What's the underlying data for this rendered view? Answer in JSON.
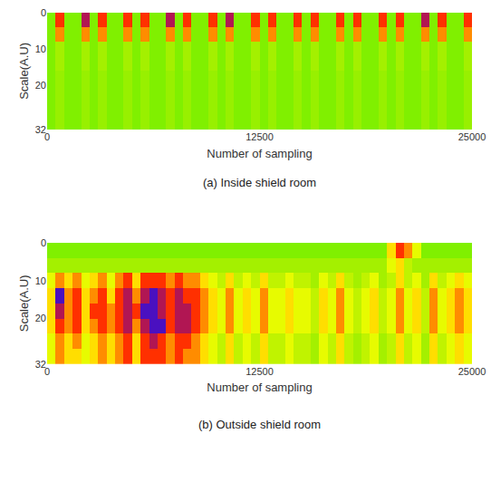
{
  "chart_data": [
    {
      "type": "heatmap",
      "title": "(a) Inside shield room",
      "x_label": "Number of sampling",
      "y_label": "Scale(A.U)",
      "xlim": [
        0,
        25000
      ],
      "ylim": [
        32,
        0
      ],
      "xticks": [
        0,
        12500,
        25000
      ],
      "yticks": [
        0,
        10,
        20,
        32
      ],
      "zlim": [
        0,
        4
      ],
      "cells": [
        [
          0,
          3,
          0,
          0,
          3.5,
          0,
          3,
          0,
          0,
          3,
          0,
          3,
          0,
          0,
          3.5,
          0,
          3,
          0,
          0,
          3,
          0,
          3.5,
          0,
          0,
          3,
          0,
          3,
          0,
          0,
          3,
          0,
          3,
          0,
          0,
          3,
          0,
          3,
          0,
          0,
          3,
          0,
          3,
          0,
          0,
          3.5,
          0,
          3,
          0,
          0,
          3
        ],
        [
          0,
          2.5,
          0,
          0,
          2.5,
          0,
          2.5,
          0,
          0,
          2.5,
          0,
          2.5,
          0,
          0,
          2.5,
          0,
          2.5,
          0,
          0,
          2.5,
          0,
          2.5,
          0,
          0,
          2.5,
          0,
          2.5,
          0,
          0,
          2.5,
          0,
          2.5,
          0,
          0,
          2.5,
          0,
          2.5,
          0,
          0,
          2.5,
          0,
          2.5,
          0,
          0,
          2.5,
          0,
          2.5,
          0,
          0,
          2.5
        ],
        [
          0,
          0.6,
          0,
          0,
          0.6,
          0,
          0.6,
          0,
          0,
          0.6,
          0,
          0.6,
          0,
          0,
          0.6,
          0,
          0.6,
          0,
          0,
          0.6,
          0,
          0.6,
          0,
          0,
          0.6,
          0,
          0.6,
          0,
          0,
          0.6,
          0,
          0.6,
          0,
          0,
          0.6,
          0,
          0.6,
          0,
          0,
          0.6,
          0,
          0.6,
          0,
          0,
          0.6,
          0,
          0.6,
          0,
          0,
          0.6
        ],
        [
          0,
          0.6,
          0,
          0,
          0.6,
          0,
          0.6,
          0,
          0,
          0.6,
          0,
          0.6,
          0,
          0,
          0.6,
          0,
          0.6,
          0,
          0,
          0.6,
          0,
          0.6,
          0,
          0,
          0.6,
          0,
          0.6,
          0,
          0,
          0.6,
          0,
          0.6,
          0,
          0,
          0.6,
          0,
          0.6,
          0,
          0,
          0.6,
          0,
          0.6,
          0,
          0,
          0.6,
          0,
          0.6,
          0,
          0,
          0.6
        ],
        [
          0,
          0.4,
          0,
          0,
          0.4,
          0,
          0.4,
          0,
          0,
          0.4,
          0,
          0.4,
          0,
          0,
          0.4,
          0,
          0.4,
          0,
          0,
          0.4,
          0,
          0.4,
          0,
          0,
          0.4,
          0,
          0.4,
          0,
          0,
          0.4,
          0,
          0.4,
          0,
          0,
          0.4,
          0,
          0.4,
          0,
          0,
          0.4,
          0,
          0.4,
          0,
          0,
          0.4,
          0,
          0.4,
          0,
          0,
          0.4
        ],
        [
          0,
          0.4,
          0,
          0,
          0.4,
          0,
          0.4,
          0,
          0,
          0.4,
          0,
          0.4,
          0,
          0,
          0.4,
          0,
          0.4,
          0,
          0,
          0.4,
          0,
          0.4,
          0,
          0,
          0.4,
          0,
          0.4,
          0,
          0,
          0.4,
          0,
          0.4,
          0,
          0,
          0.4,
          0,
          0.4,
          0,
          0,
          0.4,
          0,
          0.4,
          0,
          0,
          0.4,
          0,
          0.4,
          0,
          0,
          0.4
        ],
        [
          0,
          0.4,
          0,
          0,
          0.4,
          0,
          0.4,
          0,
          0,
          0.4,
          0,
          0.4,
          0,
          0,
          0.4,
          0,
          0.4,
          0,
          0,
          0.4,
          0,
          0.4,
          0,
          0,
          0.4,
          0,
          0.4,
          0,
          0,
          0.4,
          0,
          0.4,
          0,
          0,
          0.4,
          0,
          0.4,
          0,
          0,
          0.4,
          0,
          0.4,
          0,
          0,
          0.4,
          0,
          0.4,
          0,
          0,
          0.4
        ],
        [
          0,
          0.4,
          0,
          0,
          0.4,
          0,
          0.4,
          0,
          0,
          0.4,
          0,
          0.4,
          0,
          0,
          0.4,
          0,
          0.4,
          0,
          0,
          0.4,
          0,
          0.4,
          0,
          0,
          0.4,
          0,
          0.4,
          0,
          0,
          0.4,
          0,
          0.4,
          0,
          0,
          0.4,
          0,
          0.4,
          0,
          0,
          0.4,
          0,
          0.4,
          0,
          0,
          0.4,
          0,
          0.4,
          0,
          0,
          0.4
        ]
      ]
    },
    {
      "type": "heatmap",
      "title": "(b) Outside shield room",
      "x_label": "Number of sampling",
      "y_label": "Scale(A.U)",
      "xlim": [
        0,
        25000
      ],
      "ylim": [
        32,
        0
      ],
      "xticks": [
        0,
        12500,
        25000
      ],
      "yticks": [
        0,
        10,
        20,
        32
      ],
      "zlim": [
        0,
        4
      ],
      "cells": [
        [
          0,
          0,
          0,
          0,
          0,
          0,
          0,
          0,
          0,
          0,
          0,
          0,
          0,
          0,
          0,
          0,
          0,
          0,
          0,
          0,
          0,
          0,
          0,
          0,
          0,
          0,
          0,
          0,
          0,
          0,
          0,
          0,
          0,
          0,
          0,
          0,
          0,
          0,
          0,
          0,
          2,
          3,
          2.5,
          1.5,
          0,
          0,
          0,
          0,
          0,
          0
        ],
        [
          0.6,
          0.6,
          0.6,
          0.6,
          0.6,
          0.6,
          0.6,
          0.6,
          0.6,
          0.6,
          0.6,
          0.6,
          0.6,
          0.6,
          0.6,
          0.6,
          0.6,
          0.6,
          0.6,
          0.6,
          0.6,
          0.6,
          0.6,
          0.6,
          0.6,
          0.6,
          0.6,
          0.6,
          0.6,
          0.6,
          0.6,
          0.6,
          0.6,
          0.6,
          0.6,
          0.6,
          0.6,
          0.6,
          0.6,
          0.6,
          1.5,
          2,
          1,
          0.6,
          0.6,
          0.6,
          0.6,
          0.6,
          0.6,
          0.6
        ],
        [
          1.5,
          2.5,
          2,
          2.5,
          1.5,
          2,
          2.5,
          1.5,
          2.5,
          3,
          2,
          3,
          3,
          3,
          2.5,
          3,
          2.5,
          2.5,
          2,
          1.5,
          1,
          2,
          1,
          1.5,
          1,
          2,
          1,
          1,
          1.5,
          1,
          1,
          0.6,
          1.5,
          1,
          2,
          1,
          0.6,
          1,
          1.5,
          0.6,
          1,
          2,
          1,
          1.5,
          0.6,
          2,
          1,
          1.5,
          2,
          1.5
        ],
        [
          2,
          4,
          2.5,
          3,
          2,
          2.5,
          3,
          2,
          3,
          3.5,
          2.5,
          3.5,
          4,
          3.5,
          3,
          3.5,
          3,
          3,
          2.5,
          2,
          1.5,
          2.5,
          1.5,
          2,
          1.5,
          2.5,
          1.5,
          1.5,
          2,
          1.5,
          1.5,
          1,
          2,
          1.5,
          2.5,
          1.5,
          1,
          1.5,
          2,
          1,
          1.5,
          2.5,
          1.5,
          2,
          1,
          2.5,
          1.5,
          2,
          2.5,
          2
        ],
        [
          2,
          3.5,
          2.5,
          3,
          2,
          3,
          3,
          2.5,
          3,
          3.5,
          3,
          4,
          4,
          3.5,
          3,
          3.5,
          3.5,
          3,
          2.5,
          2,
          1.5,
          2.5,
          1.5,
          2,
          1.5,
          2.5,
          1.5,
          1.5,
          2,
          1.5,
          1.5,
          1,
          2,
          1.5,
          2.5,
          1.5,
          1,
          1.5,
          2,
          1,
          1.5,
          2.5,
          1.5,
          2,
          1,
          2.5,
          1.5,
          2,
          2.5,
          2
        ],
        [
          2,
          3,
          2.5,
          3,
          2,
          2.5,
          3,
          2.5,
          3,
          3.5,
          2.5,
          3.5,
          4,
          4,
          3,
          3.5,
          3.5,
          3,
          2.5,
          2,
          1.5,
          2.5,
          1.5,
          2,
          1.5,
          2.5,
          1.5,
          1.5,
          2,
          1.5,
          1.5,
          1,
          2,
          1.5,
          2.5,
          1.5,
          1,
          1.5,
          2,
          1,
          1.5,
          2.5,
          1.5,
          2,
          1,
          2.5,
          1.5,
          2,
          2.5,
          2
        ],
        [
          1.5,
          2.5,
          2,
          2.5,
          1.5,
          2,
          2.5,
          2,
          2.5,
          3,
          2,
          3,
          3.5,
          3,
          2.5,
          3,
          3,
          2.5,
          2,
          1.5,
          1,
          2,
          1,
          1.5,
          1,
          2,
          1,
          1,
          1.5,
          1,
          1,
          0.6,
          1.5,
          1,
          2,
          1,
          0.6,
          1,
          1.5,
          0.6,
          1,
          2,
          1,
          1.5,
          0.6,
          2,
          1,
          1.5,
          2,
          1.5
        ],
        [
          1.5,
          2.5,
          2,
          2,
          1.5,
          2,
          2.5,
          2,
          2.5,
          3,
          2,
          3,
          3,
          3,
          2.5,
          3,
          2.5,
          2.5,
          2,
          1.5,
          1,
          2,
          1,
          1.5,
          1,
          2,
          1,
          1,
          1.5,
          1,
          1,
          0.6,
          1.5,
          1,
          2,
          1,
          0.6,
          1,
          1.5,
          0.6,
          1,
          2,
          1,
          1.5,
          0.6,
          2,
          1,
          1.5,
          2,
          1.5
        ]
      ]
    }
  ]
}
